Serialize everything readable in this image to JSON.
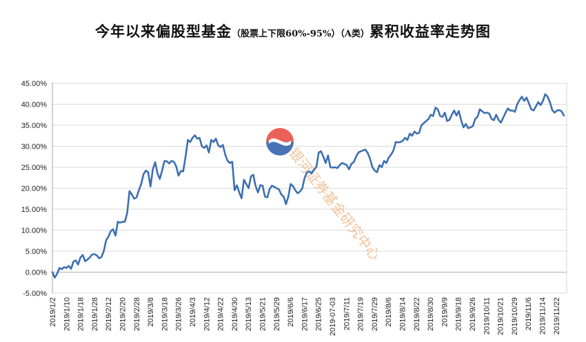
{
  "chart_data": {
    "type": "line",
    "title": "今年以来偏股型基金",
    "subtitle_bracket": "（股票上下限60%-95%）",
    "class_label": "（A类）",
    "title_suffix": "累积收益率走势图",
    "y_tick_labels": [
      "45.00%",
      "40.00%",
      "35.00%",
      "30.00%",
      "25.00%",
      "20.00%",
      "15.00%",
      "10.00%",
      "5.00%",
      "0.00%",
      "-5.00%"
    ],
    "ylim": [
      -5,
      45
    ],
    "y_unit": "%",
    "grid": true,
    "legend": "none",
    "x_tick_labels": [
      "2019/1/2",
      "2019/1/10",
      "2019/1/18",
      "2019/1/28",
      "2019/2/12",
      "2019/2/20",
      "2019/2/28",
      "2019/3/8",
      "2019/3/18",
      "2019/3/26",
      "2019/4/3",
      "2019/4/12",
      "2019/4/22",
      "2019/4/30",
      "2019/5/13",
      "2019/5/21",
      "2019/5/29",
      "2019/6/6",
      "2019/6/17",
      "2019/6/25",
      "2019-07-03",
      "2019/7/11",
      "2019/7/19",
      "2019/7/29",
      "2019/8/6",
      "2019/8/14",
      "2019/8/22",
      "2019/8/30",
      "2019/9/9",
      "2019/9/18",
      "2019/9/26",
      "2019/10/11",
      "2019/10/21",
      "2019/10/29",
      "2019/11/6",
      "2019/11/14",
      "2019/11/22"
    ],
    "series": [
      {
        "color": "#3c6fb0",
        "values": [
          0.0,
          -1.3,
          -0.4,
          1.0,
          0.7,
          1.2,
          1.0,
          1.5,
          0.8,
          2.5,
          2.8,
          1.8,
          3.5,
          4.1,
          2.6,
          3.0,
          3.5,
          4.2,
          4.3,
          4.0,
          3.3,
          3.6,
          5.0,
          7.6,
          8.5,
          9.8,
          10.2,
          8.7,
          12.0,
          11.8,
          12.0,
          12.0,
          14.0,
          19.3,
          18.5,
          17.5,
          17.8,
          19.5,
          21.0,
          23.3,
          24.2,
          23.8,
          20.4,
          24.5,
          26.2,
          23.5,
          22.2,
          24.3,
          26.5,
          26.4,
          25.9,
          26.5,
          26.3,
          25.2,
          23.0,
          24.1,
          24.0,
          27.5,
          31.5,
          31.0,
          32.0,
          32.6,
          31.8,
          32.0,
          30.0,
          29.6,
          30.2,
          28.5,
          31.5,
          31.0,
          31.8,
          30.2,
          29.8,
          30.3,
          28.0,
          26.5,
          26.0,
          26.3,
          19.5,
          20.7,
          19.0,
          17.6,
          22.0,
          21.0,
          20.0,
          22.8,
          23.2,
          20.5,
          19.0,
          20.7,
          20.6,
          18.0,
          17.8,
          19.8,
          20.6,
          20.3,
          20.0,
          19.7,
          18.5,
          18.0,
          16.2,
          18.0,
          21.0,
          20.5,
          19.5,
          18.8,
          19.2,
          20.0,
          22.5,
          23.8,
          24.0,
          23.5,
          24.5,
          25.0,
          28.5,
          28.8,
          27.5,
          26.0,
          27.8,
          25.0,
          24.9,
          25.0,
          24.8,
          25.5,
          26.0,
          25.8,
          25.5,
          24.5,
          25.8,
          26.2,
          27.5,
          28.5,
          28.8,
          29.0,
          29.2,
          28.4,
          27.0,
          25.0,
          24.2,
          23.8,
          25.5,
          25.0,
          26.5,
          26.0,
          27.3,
          28.0,
          29.0,
          31.0,
          30.9,
          31.0,
          31.3,
          32.0,
          31.5,
          33.0,
          32.5,
          33.5,
          33.0,
          33.2,
          35.0,
          35.5,
          36.0,
          36.5,
          37.5,
          37.2,
          39.2,
          38.8,
          37.2,
          37.0,
          38.0,
          36.0,
          36.3,
          37.5,
          38.5,
          37.3,
          38.4,
          36.2,
          34.5,
          35.3,
          34.3,
          34.5,
          34.8,
          36.5,
          37.0,
          38.8,
          38.3,
          37.9,
          38.0,
          37.8,
          36.5,
          36.2,
          37.5,
          36.3,
          35.6,
          36.8,
          38.0,
          39.0,
          38.5,
          38.5,
          38.2,
          40.0,
          41.0,
          41.8,
          40.8,
          41.6,
          40.2,
          38.8,
          38.5,
          39.5,
          40.5,
          39.8,
          40.8,
          42.4,
          41.8,
          40.5,
          38.6,
          38.0,
          38.5,
          38.6,
          38.3,
          37.3
        ]
      }
    ]
  },
  "watermark": {
    "text": "银河证券基金研究中心",
    "logo_colors": [
      "#e8453c",
      "#ffffff",
      "#2a5aa8"
    ]
  }
}
